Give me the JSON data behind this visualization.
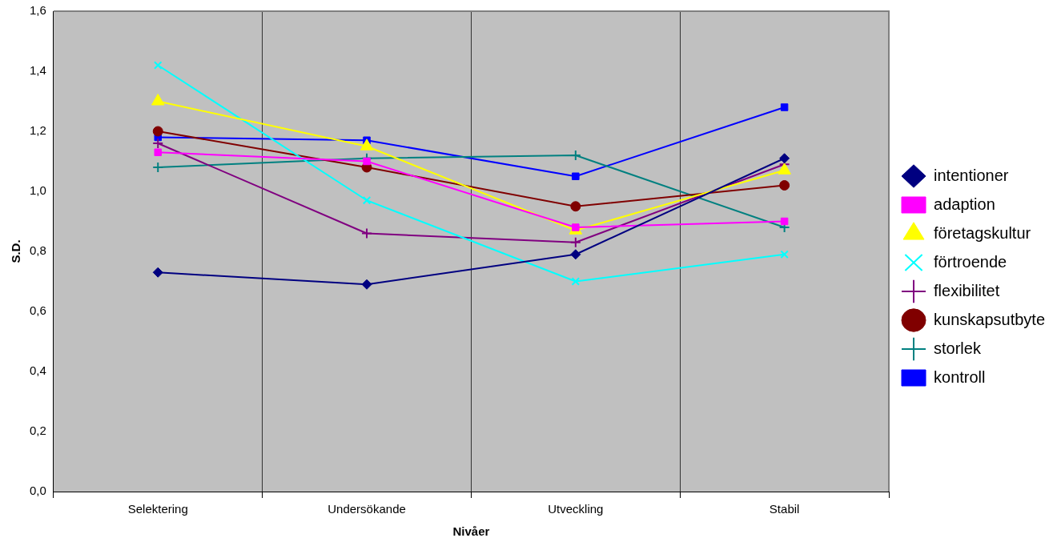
{
  "chart_data": {
    "type": "line",
    "xlabel": "Nivåer",
    "ylabel": "S.D.",
    "categories": [
      "Selektering",
      "Undersökande",
      "Utveckling",
      "Stabil"
    ],
    "ylim": [
      0,
      1.6
    ],
    "yticks": [
      {
        "value": 0,
        "label": "0,0"
      },
      {
        "value": 0.2,
        "label": "0,2"
      },
      {
        "value": 0.4,
        "label": "0,4"
      },
      {
        "value": 0.6,
        "label": "0,6"
      },
      {
        "value": 0.8,
        "label": "0,8"
      },
      {
        "value": 1.0,
        "label": "1,0"
      },
      {
        "value": 1.2,
        "label": "1,2"
      },
      {
        "value": 1.4,
        "label": "1,4"
      },
      {
        "value": 1.6,
        "label": "1,6"
      }
    ],
    "grid": "x",
    "legend": "right",
    "line_style": "solid",
    "series": [
      {
        "name": "intentioner",
        "color": "#000080",
        "marker": "diamond",
        "values": [
          0.73,
          0.69,
          0.79,
          1.11
        ]
      },
      {
        "name": "adaption",
        "color": "#ff00ff",
        "marker": "square",
        "values": [
          1.13,
          1.1,
          0.88,
          0.9
        ]
      },
      {
        "name": "företagskultur",
        "color": "#ffff00",
        "marker": "triangle",
        "values": [
          1.3,
          1.15,
          0.87,
          1.07
        ]
      },
      {
        "name": "förtroende",
        "color": "#00ffff",
        "marker": "x",
        "values": [
          1.42,
          0.97,
          0.7,
          0.79
        ]
      },
      {
        "name": "flexibilitet",
        "color": "#800080",
        "marker": "cross",
        "values": [
          1.16,
          0.86,
          0.83,
          1.09
        ]
      },
      {
        "name": "kunskapsutbyte",
        "color": "#800000",
        "marker": "circle",
        "values": [
          1.2,
          1.08,
          0.95,
          1.02
        ]
      },
      {
        "name": "storlek",
        "color": "#008080",
        "marker": "cross",
        "values": [
          1.08,
          1.11,
          1.12,
          0.88
        ]
      },
      {
        "name": "kontroll",
        "color": "#0000ff",
        "marker": "square",
        "values": [
          1.18,
          1.17,
          1.05,
          1.28
        ]
      }
    ]
  }
}
